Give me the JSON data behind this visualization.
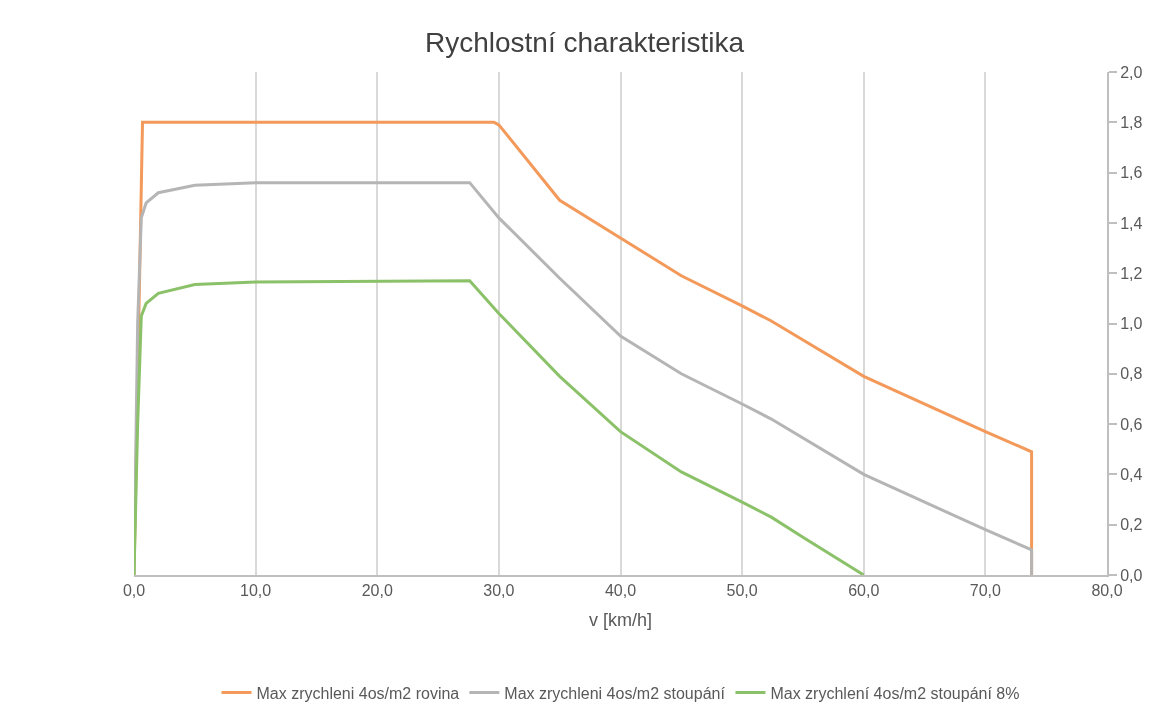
{
  "chart_data": {
    "type": "line",
    "title": "Rychlostní charakteristika",
    "xlabel": "v [km/h]",
    "xlim": [
      0,
      80
    ],
    "ylim": [
      0,
      2
    ],
    "xticks": [
      {
        "value": 0,
        "label": "0,0"
      },
      {
        "value": 10,
        "label": "10,0"
      },
      {
        "value": 20,
        "label": "20,0"
      },
      {
        "value": 30,
        "label": "30,0"
      },
      {
        "value": 40,
        "label": "40,0"
      },
      {
        "value": 50,
        "label": "50,0"
      },
      {
        "value": 60,
        "label": "60,0"
      },
      {
        "value": 70,
        "label": "70,0"
      },
      {
        "value": 80,
        "label": "80,0"
      }
    ],
    "yticks": [
      {
        "value": 0,
        "label": "0,0"
      },
      {
        "value": 0.2,
        "label": "0,2"
      },
      {
        "value": 0.4,
        "label": "0,4"
      },
      {
        "value": 0.6,
        "label": "0,6"
      },
      {
        "value": 0.8,
        "label": "0,8"
      },
      {
        "value": 1.0,
        "label": "1,0"
      },
      {
        "value": 1.2,
        "label": "1,2"
      },
      {
        "value": 1.4,
        "label": "1,4"
      },
      {
        "value": 1.6,
        "label": "1,6"
      },
      {
        "value": 1.8,
        "label": "1,8"
      },
      {
        "value": 2.0,
        "label": "2,0"
      }
    ],
    "grid": "x",
    "legend": "bottom",
    "marker": "none",
    "line_style": "solid",
    "series": [
      {
        "name": "Max zrychleni 4os/m2 rovina",
        "color": "#f3995a",
        "x": [
          0,
          0.7,
          29.6,
          30,
          35,
          40,
          45,
          50,
          52.4,
          60,
          70,
          73.8,
          73.8
        ],
        "values": [
          0,
          1.8,
          1.8,
          1.79,
          1.49,
          1.34,
          1.19,
          1.07,
          1.01,
          0.79,
          0.57,
          0.49,
          0
        ]
      },
      {
        "name": "Max zrychleni 4os/m2 stoupání",
        "color": "#b5b5b5",
        "x": [
          0,
          0.3,
          0.6,
          1,
          2,
          5,
          10,
          27.6,
          30,
          35,
          40,
          45,
          50,
          52.4,
          60,
          70,
          73.8,
          73.8
        ],
        "values": [
          0,
          1.0,
          1.42,
          1.48,
          1.52,
          1.55,
          1.56,
          1.56,
          1.42,
          1.18,
          0.95,
          0.8,
          0.68,
          0.62,
          0.4,
          0.18,
          0.1,
          0
        ]
      },
      {
        "name": "Max zrychlení 4os/m2 stoupání 8%",
        "color": "#8bc168",
        "x": [
          0,
          0.3,
          0.6,
          1,
          2,
          5,
          10,
          27.6,
          30,
          35,
          40,
          45,
          50,
          52.4,
          55,
          60
        ],
        "values": [
          0,
          0.6,
          1.03,
          1.08,
          1.12,
          1.155,
          1.165,
          1.17,
          1.04,
          0.79,
          0.57,
          0.41,
          0.29,
          0.23,
          0.15,
          0
        ]
      }
    ]
  }
}
